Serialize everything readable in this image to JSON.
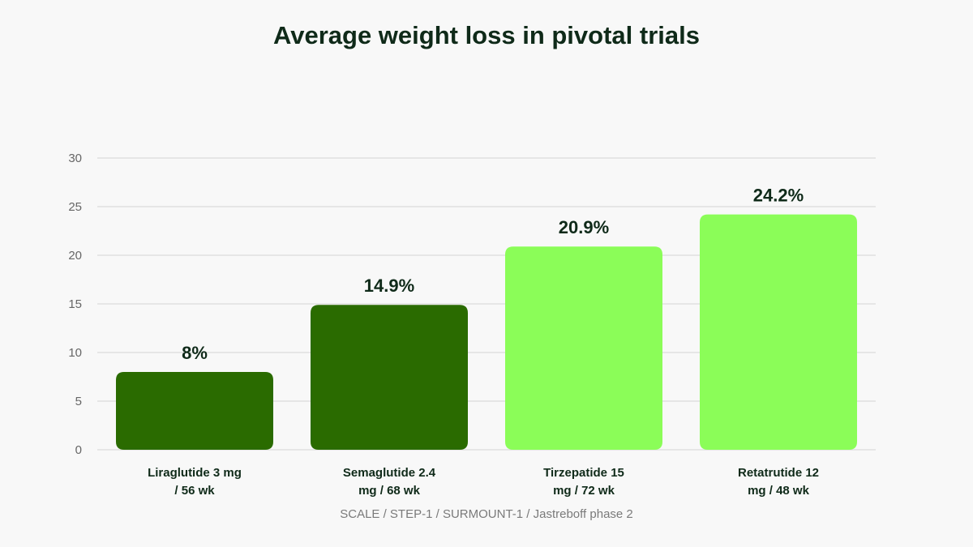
{
  "title": "Average weight loss in pivotal trials",
  "source": "SCALE / STEP-1 / SURMOUNT-1 / Jastreboff phase 2",
  "colors": {
    "dark_green": "#2a6b00",
    "light_green": "#8bfd58",
    "grid": "#dcdcdc",
    "tick_text": "#666666",
    "label_text": "#0f2a19"
  },
  "chart_data": {
    "type": "bar",
    "title": "Average weight loss in pivotal trials",
    "categories": [
      [
        "Liraglutide 3 mg",
        "/ 56 wk"
      ],
      [
        "Semaglutide 2.4",
        "mg / 68 wk"
      ],
      [
        "Tirzepatide 15",
        "mg / 72 wk"
      ],
      [
        "Retatrutide 12",
        "mg / 48 wk"
      ]
    ],
    "values": [
      8,
      14.9,
      20.9,
      24.2
    ],
    "data_labels": [
      "8%",
      "14.9%",
      "20.9%",
      "24.2%"
    ],
    "bar_colors": [
      "#2a6b00",
      "#2a6b00",
      "#8bfd58",
      "#8bfd58"
    ],
    "yticks": [
      0,
      5,
      10,
      15,
      20,
      25,
      30
    ],
    "ylim": [
      0,
      30
    ],
    "grid": true,
    "legend": false
  }
}
